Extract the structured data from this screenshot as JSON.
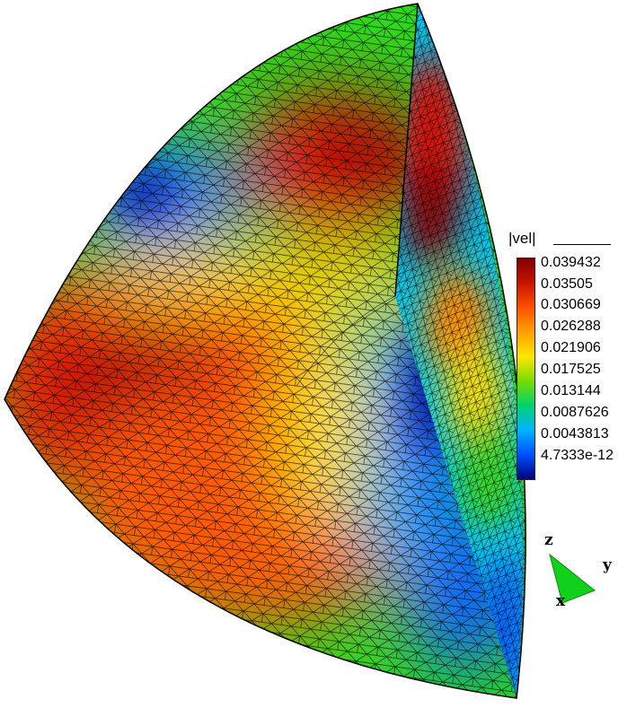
{
  "legend": {
    "title": "|vel|",
    "ticks": [
      "0.039432",
      "0.03505",
      "0.030669",
      "0.026288",
      "0.021906",
      "0.017525",
      "0.013144",
      "0.0087626",
      "0.0043813",
      "4.7333e-12"
    ],
    "colors": [
      "#800000",
      "#c81400",
      "#ff5000",
      "#ffa000",
      "#ffe600",
      "#78dc00",
      "#00d26e",
      "#00b4ff",
      "#0050ff",
      "#00007f"
    ]
  },
  "axes": {
    "x": "x",
    "y": "y",
    "z": "z"
  }
}
